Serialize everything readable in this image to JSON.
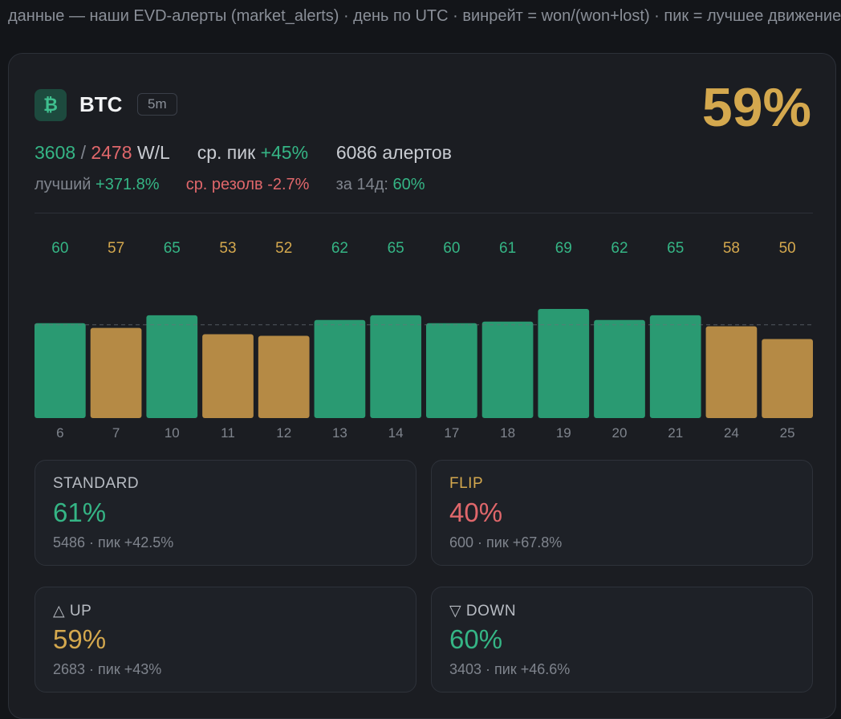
{
  "topline": "данные — наши EVD-алерты (market_alerts) · день по UTC · винрейт = won/(won+lost) · пик = лучшее движение",
  "coin": {
    "icon": "bitcoin-icon",
    "glyph": "₿",
    "name": "BTC",
    "timeframe": "5m",
    "winrate": "59%"
  },
  "stats": {
    "won": "3608",
    "sep": "/",
    "lost": "2478",
    "wl_label": "W/L",
    "avg_peak_label": "ср. пик",
    "avg_peak": "+45%",
    "alerts": "6086 алертов",
    "best_label": "лучший",
    "best": "+371.8%",
    "avg_resolve_label": "ср. резолв",
    "avg_resolve": "-2.7%",
    "period_label": "за 14д:",
    "period_value": "60%"
  },
  "colors": {
    "green": "#35b585",
    "bar_green": "#2a9a72",
    "gold": "#d4a84e",
    "bar_gold": "#b58a45",
    "red": "#e0676b",
    "background": "#131519"
  },
  "chart_data": {
    "type": "bar",
    "categories": [
      "6",
      "7",
      "10",
      "11",
      "12",
      "13",
      "14",
      "17",
      "18",
      "19",
      "20",
      "21",
      "24",
      "25"
    ],
    "values": [
      60,
      57,
      65,
      53,
      52,
      62,
      65,
      60,
      61,
      69,
      62,
      65,
      58,
      50
    ],
    "reference_line": 59,
    "ylim": [
      0,
      69
    ],
    "title": "",
    "xlabel": "",
    "ylabel": "",
    "grid": false,
    "legend": "none"
  },
  "segments": [
    {
      "label": "STANDARD",
      "rate": "61%",
      "meta": "5486 · пик +42.5%",
      "label_color": "#b8bcc3",
      "rate_color": "#35b585"
    },
    {
      "label": "FLIP",
      "rate": "40%",
      "meta": "600 · пик +67.8%",
      "label_color": "#d4a84e",
      "rate_color": "#e0676b"
    },
    {
      "label": "△ UP",
      "rate": "59%",
      "meta": "2683 · пик +43%",
      "label_color": "#b8bcc3",
      "rate_color": "#d4a84e"
    },
    {
      "label": "▽ DOWN",
      "rate": "60%",
      "meta": "3403 · пик +46.6%",
      "label_color": "#b8bcc3",
      "rate_color": "#35b585"
    }
  ]
}
